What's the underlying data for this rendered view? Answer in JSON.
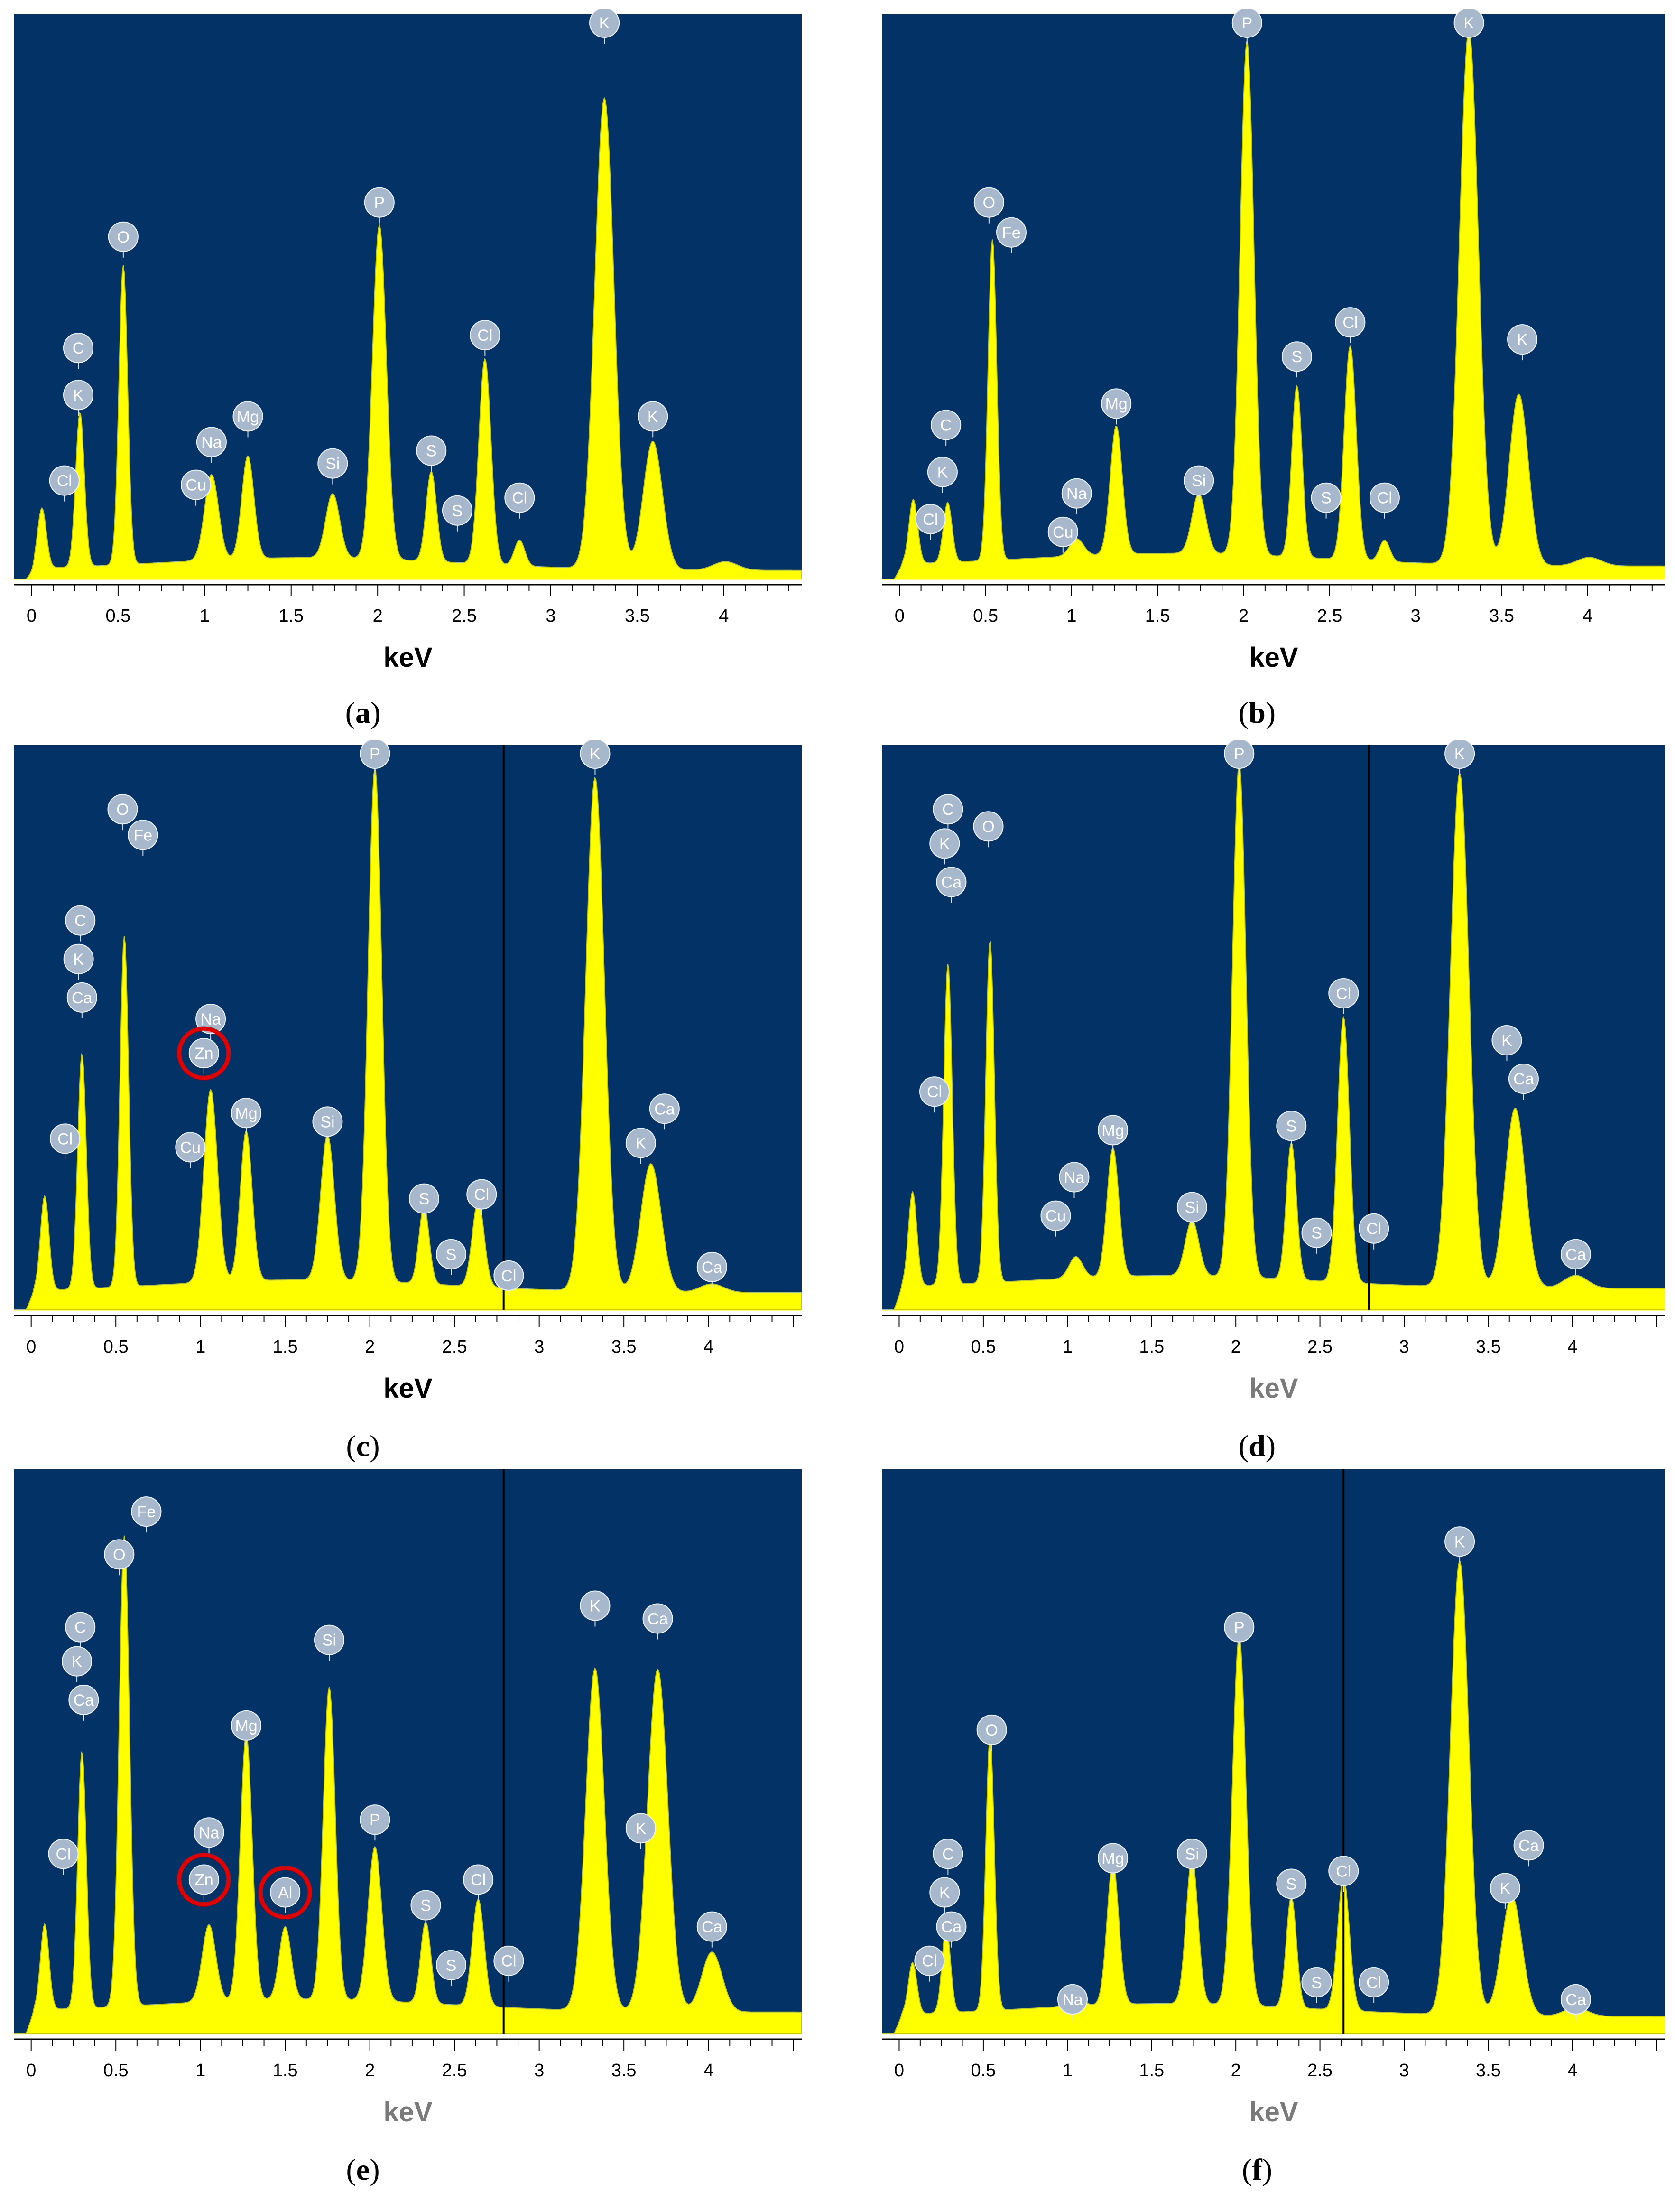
{
  "colors": {
    "background": "#033366",
    "spectrum": "#ffff00",
    "badge": "#a7b8cd",
    "highlight": "#e00000"
  },
  "chart_data": [
    {
      "id": "a",
      "type": "area",
      "caption_letter": "a",
      "xlabel": "keV",
      "xlim": [
        -0.1,
        4.45
      ],
      "x_ticks": [
        "0",
        "0.5",
        "1",
        "1.5",
        "2",
        "2.5",
        "3",
        "3.5",
        "4"
      ],
      "baseline": 0.02,
      "peaks": [
        {
          "e": 0.06,
          "h": 0.14,
          "w": 0.025
        },
        {
          "e": 0.28,
          "h": 0.36,
          "w": 0.025
        },
        {
          "e": 0.53,
          "h": 0.7,
          "w": 0.025
        },
        {
          "e": 1.04,
          "h": 0.2,
          "w": 0.04
        },
        {
          "e": 1.25,
          "h": 0.24,
          "w": 0.035
        },
        {
          "e": 1.74,
          "h": 0.15,
          "w": 0.04
        },
        {
          "e": 2.01,
          "h": 0.78,
          "w": 0.04
        },
        {
          "e": 2.31,
          "h": 0.21,
          "w": 0.03
        },
        {
          "e": 2.62,
          "h": 0.48,
          "w": 0.035
        },
        {
          "e": 2.82,
          "h": 0.06,
          "w": 0.03
        },
        {
          "e": 3.31,
          "h": 1.1,
          "w": 0.055
        },
        {
          "e": 3.59,
          "h": 0.3,
          "w": 0.055
        },
        {
          "e": 4.01,
          "h": 0.02,
          "w": 0.07
        }
      ],
      "labels": [
        {
          "text": "Cl",
          "e": 0.19,
          "h": 0.23
        },
        {
          "text": "K",
          "e": 0.27,
          "h": 0.43
        },
        {
          "text": "C",
          "e": 0.27,
          "h": 0.54
        },
        {
          "text": "O",
          "e": 0.53,
          "h": 0.8
        },
        {
          "text": "Cu",
          "e": 0.95,
          "h": 0.22
        },
        {
          "text": "Na",
          "e": 1.04,
          "h": 0.32
        },
        {
          "text": "Mg",
          "e": 1.25,
          "h": 0.38
        },
        {
          "text": "Si",
          "e": 1.74,
          "h": 0.27
        },
        {
          "text": "P",
          "e": 2.01,
          "h": 0.88
        },
        {
          "text": "S",
          "e": 2.31,
          "h": 0.3
        },
        {
          "text": "S",
          "e": 2.46,
          "h": 0.16
        },
        {
          "text": "Cl",
          "e": 2.62,
          "h": 0.57
        },
        {
          "text": "Cl",
          "e": 2.82,
          "h": 0.19
        },
        {
          "text": "K",
          "e": 3.31,
          "h": 1.3
        },
        {
          "text": "K",
          "e": 3.59,
          "h": 0.38
        }
      ],
      "marker_kev": null
    },
    {
      "id": "b",
      "type": "area",
      "caption_letter": "b",
      "xlabel": "keV",
      "xlim": [
        -0.1,
        4.45
      ],
      "x_ticks": [
        "0",
        "0.5",
        "1",
        "1.5",
        "2",
        "2.5",
        "3",
        "3.5",
        "4"
      ],
      "baseline": 0.03,
      "peaks": [
        {
          "e": 0.08,
          "h": 0.15,
          "w": 0.025
        },
        {
          "e": 0.28,
          "h": 0.14,
          "w": 0.025
        },
        {
          "e": 0.54,
          "h": 0.75,
          "w": 0.025
        },
        {
          "e": 1.03,
          "h": 0.04,
          "w": 0.04
        },
        {
          "e": 1.26,
          "h": 0.3,
          "w": 0.035
        },
        {
          "e": 1.74,
          "h": 0.14,
          "w": 0.04
        },
        {
          "e": 2.02,
          "h": 1.2,
          "w": 0.04
        },
        {
          "e": 2.31,
          "h": 0.4,
          "w": 0.03
        },
        {
          "e": 2.62,
          "h": 0.5,
          "w": 0.035
        },
        {
          "e": 2.82,
          "h": 0.05,
          "w": 0.03
        },
        {
          "e": 3.31,
          "h": 1.25,
          "w": 0.055
        },
        {
          "e": 3.6,
          "h": 0.4,
          "w": 0.055
        },
        {
          "e": 4.01,
          "h": 0.02,
          "w": 0.07
        }
      ],
      "labels": [
        {
          "text": "Cl",
          "e": 0.18,
          "h": 0.14
        },
        {
          "text": "Cu",
          "e": 0.95,
          "h": 0.11
        },
        {
          "text": "K",
          "e": 0.25,
          "h": 0.25
        },
        {
          "text": "C",
          "e": 0.27,
          "h": 0.36
        },
        {
          "text": "Na",
          "e": 1.03,
          "h": 0.2
        },
        {
          "text": "Mg",
          "e": 1.26,
          "h": 0.41
        },
        {
          "text": "Si",
          "e": 1.74,
          "h": 0.23
        },
        {
          "text": "O",
          "e": 0.52,
          "h": 0.88
        },
        {
          "text": "Fe",
          "e": 0.65,
          "h": 0.81
        },
        {
          "text": "P",
          "e": 2.02,
          "h": 1.3
        },
        {
          "text": "S",
          "e": 2.31,
          "h": 0.52
        },
        {
          "text": "S",
          "e": 2.48,
          "h": 0.19
        },
        {
          "text": "Cl",
          "e": 2.62,
          "h": 0.6
        },
        {
          "text": "Cl",
          "e": 2.82,
          "h": 0.19
        },
        {
          "text": "K",
          "e": 3.31,
          "h": 1.3
        },
        {
          "text": "K",
          "e": 3.62,
          "h": 0.56
        }
      ],
      "marker_kev": null
    },
    {
      "id": "c",
      "type": "area",
      "caption_letter": "c",
      "xlabel": "keV",
      "xlim": [
        -0.1,
        4.55
      ],
      "x_ticks": [
        "0",
        "0.5",
        "1",
        "1.5",
        "2",
        "2.5",
        "3",
        "3.5",
        "4"
      ],
      "baseline": 0.04,
      "peaks": [
        {
          "e": 0.08,
          "h": 0.22,
          "w": 0.025
        },
        {
          "e": 0.3,
          "h": 0.55,
          "w": 0.025
        },
        {
          "e": 0.55,
          "h": 0.82,
          "w": 0.025
        },
        {
          "e": 1.06,
          "h": 0.45,
          "w": 0.04
        },
        {
          "e": 1.27,
          "h": 0.35,
          "w": 0.035
        },
        {
          "e": 1.75,
          "h": 0.34,
          "w": 0.04
        },
        {
          "e": 2.03,
          "h": 1.2,
          "w": 0.04
        },
        {
          "e": 2.32,
          "h": 0.18,
          "w": 0.03
        },
        {
          "e": 2.64,
          "h": 0.2,
          "w": 0.035
        },
        {
          "e": 3.33,
          "h": 1.2,
          "w": 0.055
        },
        {
          "e": 3.66,
          "h": 0.3,
          "w": 0.06
        },
        {
          "e": 4.02,
          "h": 0.02,
          "w": 0.07
        }
      ],
      "labels": [
        {
          "text": "Cl",
          "e": 0.2,
          "h": 0.4
        },
        {
          "text": "Ca",
          "e": 0.3,
          "h": 0.73
        },
        {
          "text": "K",
          "e": 0.28,
          "h": 0.82
        },
        {
          "text": "C",
          "e": 0.29,
          "h": 0.91
        },
        {
          "text": "O",
          "e": 0.54,
          "h": 1.17
        },
        {
          "text": "Fe",
          "e": 0.66,
          "h": 1.11
        },
        {
          "text": "Na",
          "e": 1.06,
          "h": 0.68
        },
        {
          "text": "Zn",
          "e": 1.02,
          "h": 0.6,
          "highlight": true
        },
        {
          "text": "Cu",
          "e": 0.94,
          "h": 0.38
        },
        {
          "text": "Mg",
          "e": 1.27,
          "h": 0.46
        },
        {
          "text": "Si",
          "e": 1.75,
          "h": 0.44
        },
        {
          "text": "P",
          "e": 2.03,
          "h": 1.3
        },
        {
          "text": "S",
          "e": 2.32,
          "h": 0.26
        },
        {
          "text": "S",
          "e": 2.48,
          "h": 0.13
        },
        {
          "text": "Cl",
          "e": 2.66,
          "h": 0.27
        },
        {
          "text": "Cl",
          "e": 2.82,
          "h": 0.08
        },
        {
          "text": "K",
          "e": 3.33,
          "h": 1.3
        },
        {
          "text": "Ca",
          "e": 3.74,
          "h": 0.47
        },
        {
          "text": "K",
          "e": 3.6,
          "h": 0.39
        },
        {
          "text": "Ca",
          "e": 4.02,
          "h": 0.1
        }
      ],
      "marker_kev": 2.79
    },
    {
      "id": "d",
      "type": "area",
      "caption_letter": "d",
      "xlabel": "keV",
      "xlim": [
        -0.1,
        4.55
      ],
      "x_ticks": [
        "0",
        "0.5",
        "1",
        "1.5",
        "2",
        "2.5",
        "3",
        "3.5",
        "4"
      ],
      "baseline": 0.05,
      "peaks": [
        {
          "e": 0.08,
          "h": 0.22,
          "w": 0.025
        },
        {
          "e": 0.29,
          "h": 0.75,
          "w": 0.025
        },
        {
          "e": 0.54,
          "h": 0.8,
          "w": 0.025
        },
        {
          "e": 1.05,
          "h": 0.05,
          "w": 0.04
        },
        {
          "e": 1.27,
          "h": 0.3,
          "w": 0.035
        },
        {
          "e": 1.74,
          "h": 0.13,
          "w": 0.04
        },
        {
          "e": 2.02,
          "h": 1.2,
          "w": 0.04
        },
        {
          "e": 2.33,
          "h": 0.32,
          "w": 0.03
        },
        {
          "e": 2.64,
          "h": 0.62,
          "w": 0.035
        },
        {
          "e": 3.33,
          "h": 1.2,
          "w": 0.055
        },
        {
          "e": 3.66,
          "h": 0.42,
          "w": 0.06
        },
        {
          "e": 4.02,
          "h": 0.03,
          "w": 0.07
        }
      ],
      "labels": [
        {
          "text": "Cl",
          "e": 0.21,
          "h": 0.51
        },
        {
          "text": "Ca",
          "e": 0.31,
          "h": 1.0
        },
        {
          "text": "K",
          "e": 0.27,
          "h": 1.09
        },
        {
          "text": "C",
          "e": 0.29,
          "h": 1.17
        },
        {
          "text": "O",
          "e": 0.53,
          "h": 1.13
        },
        {
          "text": "Cu",
          "e": 0.93,
          "h": 0.22
        },
        {
          "text": "Na",
          "e": 1.04,
          "h": 0.31
        },
        {
          "text": "Mg",
          "e": 1.27,
          "h": 0.42
        },
        {
          "text": "Si",
          "e": 1.74,
          "h": 0.24
        },
        {
          "text": "P",
          "e": 2.02,
          "h": 1.3
        },
        {
          "text": "S",
          "e": 2.33,
          "h": 0.43
        },
        {
          "text": "S",
          "e": 2.48,
          "h": 0.18
        },
        {
          "text": "Cl",
          "e": 2.64,
          "h": 0.74
        },
        {
          "text": "Cl",
          "e": 2.82,
          "h": 0.19
        },
        {
          "text": "K",
          "e": 3.33,
          "h": 1.3
        },
        {
          "text": "K",
          "e": 3.61,
          "h": 0.63
        },
        {
          "text": "Ca",
          "e": 3.71,
          "h": 0.54
        },
        {
          "text": "Ca",
          "e": 4.02,
          "h": 0.13
        }
      ],
      "marker_kev": 2.79
    },
    {
      "id": "e",
      "type": "area",
      "caption_letter": "e",
      "xlabel": "keV",
      "xlim": [
        -0.1,
        4.55
      ],
      "x_ticks": [
        "0",
        "0.5",
        "1",
        "1.5",
        "2",
        "2.5",
        "3",
        "3.5",
        "4"
      ],
      "baseline": 0.05,
      "peaks": [
        {
          "e": 0.08,
          "h": 0.2,
          "w": 0.025
        },
        {
          "e": 0.3,
          "h": 0.6,
          "w": 0.025
        },
        {
          "e": 0.55,
          "h": 1.1,
          "w": 0.03
        },
        {
          "e": 1.05,
          "h": 0.18,
          "w": 0.04
        },
        {
          "e": 1.27,
          "h": 0.62,
          "w": 0.035
        },
        {
          "e": 1.5,
          "h": 0.17,
          "w": 0.035
        },
        {
          "e": 1.76,
          "h": 0.73,
          "w": 0.035
        },
        {
          "e": 2.03,
          "h": 0.36,
          "w": 0.04
        },
        {
          "e": 2.33,
          "h": 0.19,
          "w": 0.03
        },
        {
          "e": 2.64,
          "h": 0.25,
          "w": 0.035
        },
        {
          "e": 3.33,
          "h": 0.8,
          "w": 0.055
        },
        {
          "e": 3.7,
          "h": 0.8,
          "w": 0.06
        },
        {
          "e": 4.02,
          "h": 0.14,
          "w": 0.06
        }
      ],
      "labels": [
        {
          "text": "Cl",
          "e": 0.19,
          "h": 0.42
        },
        {
          "text": "Ca",
          "e": 0.31,
          "h": 0.78
        },
        {
          "text": "K",
          "e": 0.27,
          "h": 0.87
        },
        {
          "text": "C",
          "e": 0.29,
          "h": 0.95
        },
        {
          "text": "O",
          "e": 0.52,
          "h": 1.12
        },
        {
          "text": "Fe",
          "e": 0.68,
          "h": 1.22
        },
        {
          "text": "Na",
          "e": 1.05,
          "h": 0.47
        },
        {
          "text": "Zn",
          "e": 1.02,
          "h": 0.36,
          "highlight": true
        },
        {
          "text": "Al",
          "e": 1.5,
          "h": 0.33,
          "highlight": true
        },
        {
          "text": "Mg",
          "e": 1.27,
          "h": 0.72
        },
        {
          "text": "Si",
          "e": 1.76,
          "h": 0.92
        },
        {
          "text": "P",
          "e": 2.03,
          "h": 0.5
        },
        {
          "text": "S",
          "e": 2.33,
          "h": 0.3
        },
        {
          "text": "S",
          "e": 2.48,
          "h": 0.16
        },
        {
          "text": "Cl",
          "e": 2.64,
          "h": 0.36
        },
        {
          "text": "Cl",
          "e": 2.82,
          "h": 0.17
        },
        {
          "text": "K",
          "e": 3.33,
          "h": 1.0
        },
        {
          "text": "Ca",
          "e": 3.7,
          "h": 0.97
        },
        {
          "text": "K",
          "e": 3.6,
          "h": 0.48
        },
        {
          "text": "Ca",
          "e": 4.02,
          "h": 0.25
        }
      ],
      "marker_kev": 2.79
    },
    {
      "id": "f",
      "type": "area",
      "caption_letter": "f",
      "xlabel": "keV",
      "xlim": [
        -0.1,
        4.55
      ],
      "x_ticks": [
        "0",
        "0.5",
        "1",
        "1.5",
        "2",
        "2.5",
        "3",
        "3.5",
        "4"
      ],
      "baseline": 0.04,
      "peaks": [
        {
          "e": 0.08,
          "h": 0.12,
          "w": 0.025
        },
        {
          "e": 0.28,
          "h": 0.2,
          "w": 0.025
        },
        {
          "e": 0.54,
          "h": 0.64,
          "w": 0.025
        },
        {
          "e": 1.04,
          "h": 0.04,
          "w": 0.04
        },
        {
          "e": 1.27,
          "h": 0.33,
          "w": 0.035
        },
        {
          "e": 1.74,
          "h": 0.34,
          "w": 0.035
        },
        {
          "e": 2.02,
          "h": 0.86,
          "w": 0.04
        },
        {
          "e": 2.33,
          "h": 0.26,
          "w": 0.03
        },
        {
          "e": 2.64,
          "h": 0.31,
          "w": 0.035
        },
        {
          "e": 3.33,
          "h": 1.06,
          "w": 0.055
        },
        {
          "e": 3.64,
          "h": 0.28,
          "w": 0.06
        },
        {
          "e": 4.02,
          "h": 0.02,
          "w": 0.07
        }
      ],
      "labels": [
        {
          "text": "Cl",
          "e": 0.18,
          "h": 0.17
        },
        {
          "text": "Ca",
          "e": 0.31,
          "h": 0.25
        },
        {
          "text": "K",
          "e": 0.27,
          "h": 0.33
        },
        {
          "text": "C",
          "e": 0.29,
          "h": 0.42
        },
        {
          "text": "O",
          "e": 0.55,
          "h": 0.71
        },
        {
          "text": "Na",
          "e": 1.03,
          "h": 0.08
        },
        {
          "text": "Mg",
          "e": 1.27,
          "h": 0.41
        },
        {
          "text": "Si",
          "e": 1.74,
          "h": 0.42
        },
        {
          "text": "P",
          "e": 2.02,
          "h": 0.95
        },
        {
          "text": "S",
          "e": 2.33,
          "h": 0.35
        },
        {
          "text": "S",
          "e": 2.48,
          "h": 0.12
        },
        {
          "text": "Cl",
          "e": 2.64,
          "h": 0.38
        },
        {
          "text": "Cl",
          "e": 2.82,
          "h": 0.12
        },
        {
          "text": "K",
          "e": 3.33,
          "h": 1.15
        },
        {
          "text": "K",
          "e": 3.6,
          "h": 0.34
        },
        {
          "text": "Ca",
          "e": 3.74,
          "h": 0.44
        },
        {
          "text": "Ca",
          "e": 4.02,
          "h": 0.08
        }
      ],
      "marker_kev": 2.64
    }
  ]
}
